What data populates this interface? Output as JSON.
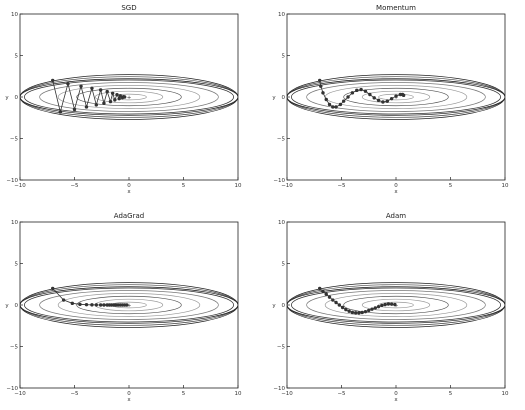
{
  "chart_data": [
    {
      "type": "line",
      "title": "SGD",
      "xlabel": "x",
      "ylabel": "y",
      "xlim": [
        -10,
        10
      ],
      "ylim": [
        -10,
        10
      ],
      "xticks": [
        "−10",
        "−5",
        "0",
        "5",
        "10"
      ],
      "yticks": [
        "10",
        "5",
        "0",
        "−5",
        "−10"
      ],
      "contours": true,
      "optimum_marker": [
        0,
        0
      ],
      "series": [
        {
          "x": [
            -7.0,
            -6.3,
            -5.6,
            -5.0,
            -4.4,
            -3.9,
            -3.4,
            -3.0,
            -2.6,
            -2.3,
            -2.0,
            -1.7,
            -1.5,
            -1.3,
            -1.1,
            -0.9,
            -0.8,
            -0.6,
            -0.5,
            -0.4
          ],
          "y": [
            2.0,
            -1.8,
            1.6,
            -1.5,
            1.3,
            -1.2,
            1.05,
            -0.95,
            0.85,
            -0.75,
            0.65,
            -0.55,
            0.45,
            -0.35,
            0.28,
            -0.2,
            0.14,
            -0.08,
            0.04,
            0.0
          ]
        }
      ]
    },
    {
      "type": "line",
      "title": "Momentum",
      "xlabel": "x",
      "ylabel": "y",
      "xlim": [
        -10,
        10
      ],
      "ylim": [
        -10,
        10
      ],
      "xticks": [
        "−10",
        "−5",
        "0",
        "5",
        "10"
      ],
      "yticks": [
        "10",
        "5",
        "0",
        "−5",
        "−10"
      ],
      "contours": true,
      "optimum_marker": [
        0,
        0
      ],
      "series": [
        {
          "x": [
            -7.0,
            -6.9,
            -6.7,
            -6.4,
            -6.1,
            -5.8,
            -5.5,
            -5.1,
            -4.8,
            -4.4,
            -4.0,
            -3.6,
            -3.2,
            -2.8,
            -2.4,
            -2.0,
            -1.6,
            -1.2,
            -0.8,
            -0.4,
            0.0,
            0.4,
            0.6,
            0.7
          ],
          "y": [
            2.0,
            1.3,
            0.5,
            -0.3,
            -0.9,
            -1.2,
            -1.2,
            -0.9,
            -0.5,
            0.0,
            0.5,
            0.8,
            0.9,
            0.7,
            0.3,
            -0.1,
            -0.4,
            -0.6,
            -0.5,
            -0.2,
            0.1,
            0.3,
            0.3,
            0.2
          ]
        }
      ]
    },
    {
      "type": "line",
      "title": "AdaGrad",
      "xlabel": "x",
      "ylabel": "y",
      "xlim": [
        -10,
        10
      ],
      "ylim": [
        -10,
        10
      ],
      "xticks": [
        "−10",
        "−5",
        "0",
        "5",
        "10"
      ],
      "yticks": [
        "10",
        "5",
        "0",
        "−5",
        "−10"
      ],
      "contours": true,
      "optimum_marker": [
        0,
        0
      ],
      "series": [
        {
          "x": [
            -7.0,
            -6.0,
            -5.2,
            -4.5,
            -3.9,
            -3.4,
            -3.0,
            -2.6,
            -2.3,
            -2.0,
            -1.8,
            -1.6,
            -1.4,
            -1.2,
            -1.0,
            -0.8,
            -0.6,
            -0.4,
            -0.2
          ],
          "y": [
            2.0,
            0.6,
            0.2,
            0.08,
            0.04,
            0.02,
            0.01,
            0.0,
            0.0,
            0.0,
            0.0,
            0.0,
            0.0,
            0.0,
            0.0,
            0.0,
            0.0,
            0.0,
            0.0
          ]
        }
      ]
    },
    {
      "type": "line",
      "title": "Adam",
      "xlabel": "x",
      "ylabel": "y",
      "xlim": [
        -10,
        10
      ],
      "ylim": [
        -10,
        10
      ],
      "xticks": [
        "−10",
        "−5",
        "0",
        "5",
        "10"
      ],
      "yticks": [
        "10",
        "5",
        "0",
        "−5",
        "−10"
      ],
      "contours": true,
      "optimum_marker": [
        0,
        0
      ],
      "series": [
        {
          "x": [
            -7.0,
            -6.7,
            -6.4,
            -6.1,
            -5.8,
            -5.5,
            -5.2,
            -4.9,
            -4.6,
            -4.3,
            -4.0,
            -3.7,
            -3.4,
            -3.1,
            -2.8,
            -2.5,
            -2.2,
            -1.9,
            -1.6,
            -1.3,
            -1.0,
            -0.7,
            -0.4,
            -0.1
          ],
          "y": [
            2.0,
            1.65,
            1.3,
            0.95,
            0.6,
            0.3,
            0.0,
            -0.3,
            -0.55,
            -0.75,
            -0.9,
            -0.95,
            -0.95,
            -0.9,
            -0.8,
            -0.65,
            -0.5,
            -0.35,
            -0.2,
            -0.05,
            0.05,
            0.12,
            0.1,
            0.05
          ]
        }
      ]
    }
  ]
}
